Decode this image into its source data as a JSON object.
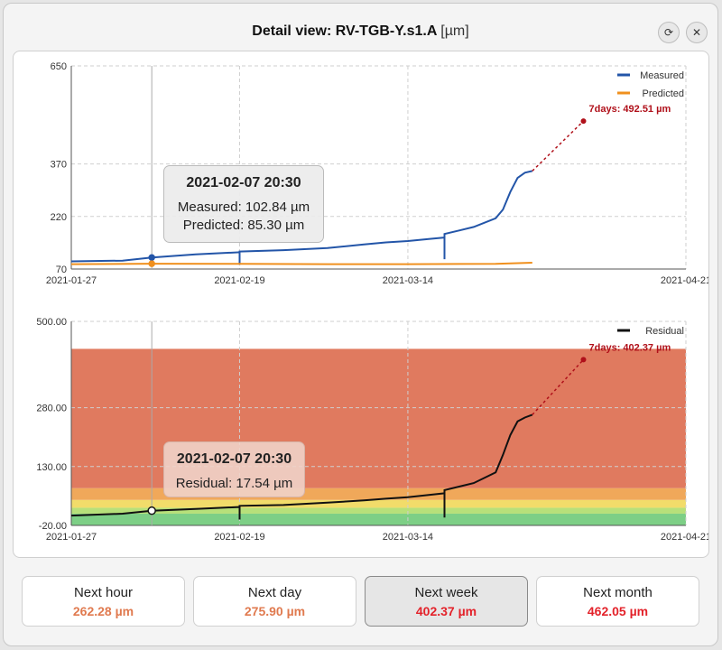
{
  "window": {
    "title": "Detail view: RV-TGB-Y.s1.A",
    "unit": "[µm]",
    "refresh_icon": "refresh-icon",
    "close_icon": "close-icon",
    "refresh_glyph": "⟳",
    "close_glyph": "✕"
  },
  "top_chart": {
    "tooltip": {
      "title": "2021-02-07 20:30",
      "measured": "Measured: 102.84 µm",
      "predicted": "Predicted: 85.30 µm"
    },
    "forecast_label": "7days: 492.51 µm"
  },
  "bottom_chart": {
    "tooltip": {
      "title": "2021-02-07 20:30",
      "residual": "Residual: 17.54 µm"
    },
    "forecast_label": "7days: 402.37 µm"
  },
  "forecast_cards": [
    {
      "label": "Next hour",
      "value": "262.28 µm",
      "color": "#e07a4f",
      "active": false
    },
    {
      "label": "Next day",
      "value": "275.90 µm",
      "color": "#e07a4f",
      "active": false
    },
    {
      "label": "Next week",
      "value": "402.37 µm",
      "color": "#e3222a",
      "active": true
    },
    {
      "label": "Next month",
      "value": "462.05 µm",
      "color": "#e3222a",
      "active": false
    }
  ],
  "chart_data": [
    {
      "type": "line",
      "x_ticks": [
        "2021-01-27",
        "2021-02-19",
        "2021-03-14",
        "2021-04-21"
      ],
      "xlim": [
        "2021-01-27",
        "2021-04-21"
      ],
      "y_ticks": [
        70,
        220,
        370,
        650
      ],
      "ylim": [
        70,
        650
      ],
      "grid": true,
      "legend_placement": "top-right",
      "series": [
        {
          "name": "Measured",
          "color": "#2355a8",
          "points": [
            [
              "2021-01-27",
              92
            ],
            [
              "2021-02-03",
              94
            ],
            [
              "2021-02-07",
              102.84
            ],
            [
              "2021-02-13",
              112
            ],
            [
              "2021-02-19",
              118
            ],
            [
              "2021-02-19",
              82
            ],
            [
              "2021-02-19",
              120
            ],
            [
              "2021-02-25",
              124
            ],
            [
              "2021-03-03",
              130
            ],
            [
              "2021-03-08",
              140
            ],
            [
              "2021-03-11",
              146
            ],
            [
              "2021-03-14",
              150
            ],
            [
              "2021-03-17",
              156
            ],
            [
              "2021-03-19",
              160
            ],
            [
              "2021-03-19",
              98
            ],
            [
              "2021-03-19",
              170
            ],
            [
              "2021-03-23",
              190
            ],
            [
              "2021-03-26",
              215
            ],
            [
              "2021-03-27",
              240
            ],
            [
              "2021-03-28",
              290
            ],
            [
              "2021-03-29",
              330
            ],
            [
              "2021-03-30",
              345
            ],
            [
              "2021-03-31",
              350
            ]
          ]
        },
        {
          "name": "Predicted",
          "color": "#f0901e",
          "points": [
            [
              "2021-01-27",
              84
            ],
            [
              "2021-02-07",
              85.3
            ],
            [
              "2021-02-19",
              85
            ],
            [
              "2021-03-03",
              84
            ],
            [
              "2021-03-14",
              84
            ],
            [
              "2021-03-26",
              85
            ],
            [
              "2021-03-31",
              88
            ]
          ]
        },
        {
          "name": "7days",
          "color": "#b0101a",
          "points": [
            [
              "2021-03-31",
              350
            ],
            [
              "2021-04-07",
              492.51
            ]
          ]
        }
      ]
    },
    {
      "type": "line",
      "x_ticks": [
        "2021-01-27",
        "2021-02-19",
        "2021-03-14",
        "2021-04-21"
      ],
      "xlim": [
        "2021-01-27",
        "2021-04-21"
      ],
      "y_ticks": [
        -20,
        130,
        280,
        500
      ],
      "ylim": [
        -20,
        500
      ],
      "grid": true,
      "legend_placement": "top-right",
      "bands": [
        {
          "from": -20,
          "to": 10,
          "color": "#7dcf86"
        },
        {
          "from": 10,
          "to": 25,
          "color": "#b7e07a"
        },
        {
          "from": 25,
          "to": 45,
          "color": "#f2dc6a"
        },
        {
          "from": 45,
          "to": 75,
          "color": "#f0a85a"
        },
        {
          "from": 75,
          "to": 430,
          "color": "#e07a5f"
        }
      ],
      "series": [
        {
          "name": "Residual",
          "color": "#111111",
          "points": [
            [
              "2021-01-27",
              5
            ],
            [
              "2021-02-03",
              10
            ],
            [
              "2021-02-07",
              17.54
            ],
            [
              "2021-02-13",
              22
            ],
            [
              "2021-02-19",
              27
            ],
            [
              "2021-02-19",
              -5
            ],
            [
              "2021-02-19",
              30
            ],
            [
              "2021-02-25",
              32
            ],
            [
              "2021-03-03",
              38
            ],
            [
              "2021-03-08",
              44
            ],
            [
              "2021-03-11",
              48
            ],
            [
              "2021-03-14",
              52
            ],
            [
              "2021-03-17",
              58
            ],
            [
              "2021-03-19",
              62
            ],
            [
              "2021-03-19",
              0
            ],
            [
              "2021-03-19",
              70
            ],
            [
              "2021-03-23",
              88
            ],
            [
              "2021-03-26",
              115
            ],
            [
              "2021-03-27",
              160
            ],
            [
              "2021-03-28",
              210
            ],
            [
              "2021-03-29",
              245
            ],
            [
              "2021-03-30",
              255
            ],
            [
              "2021-03-31",
              262
            ]
          ]
        },
        {
          "name": "7days",
          "color": "#b0101a",
          "points": [
            [
              "2021-03-31",
              262
            ],
            [
              "2021-04-07",
              402.37
            ]
          ]
        }
      ]
    }
  ]
}
